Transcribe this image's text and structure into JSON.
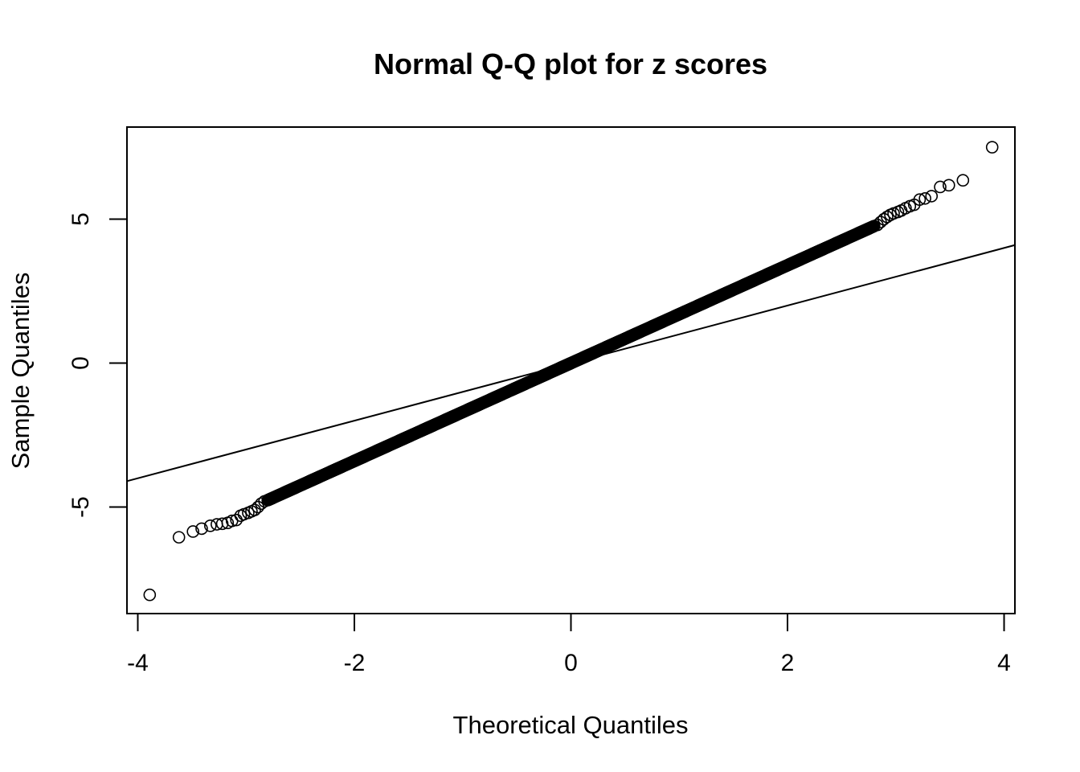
{
  "chart_data": {
    "type": "scatter",
    "title": "Normal Q-Q plot for z scores",
    "xlabel": "Theoretical Quantiles",
    "ylabel": "Sample Quantiles",
    "xlim": [
      -4.1,
      4.1
    ],
    "ylim": [
      -8.7,
      8.2
    ],
    "x_ticks": [
      {
        "value": -4,
        "label": "-4"
      },
      {
        "value": -2,
        "label": "-2"
      },
      {
        "value": 0,
        "label": "0"
      },
      {
        "value": 2,
        "label": "2"
      },
      {
        "value": 4,
        "label": "4"
      }
    ],
    "y_ticks": [
      {
        "value": -5,
        "label": "-5"
      },
      {
        "value": 0,
        "label": "0"
      },
      {
        "value": 5,
        "label": "5"
      }
    ],
    "grid": false,
    "reference_line": {
      "intercept": 0,
      "slope": 1
    },
    "point_style": "open circle",
    "points": [
      [
        -3.89,
        -8.05
      ],
      [
        -3.62,
        -6.05
      ],
      [
        -3.49,
        -5.85
      ],
      [
        -3.41,
        -5.75
      ],
      [
        -3.33,
        -5.65
      ],
      [
        -3.27,
        -5.6
      ],
      [
        -3.22,
        -5.58
      ],
      [
        -3.17,
        -5.55
      ],
      [
        -3.13,
        -5.48
      ],
      [
        -3.09,
        -5.45
      ],
      [
        -3.05,
        -5.3
      ],
      [
        -3.02,
        -5.25
      ],
      [
        -2.98,
        -5.2
      ],
      [
        -2.95,
        -5.15
      ],
      [
        -2.92,
        -5.1
      ],
      [
        -2.89,
        -5.0
      ],
      [
        -2.86,
        -4.88
      ],
      [
        -2.83,
        -4.8
      ],
      [
        2.83,
        4.8
      ],
      [
        2.86,
        4.9
      ],
      [
        2.89,
        5.0
      ],
      [
        2.92,
        5.08
      ],
      [
        2.95,
        5.15
      ],
      [
        2.98,
        5.2
      ],
      [
        3.02,
        5.25
      ],
      [
        3.05,
        5.3
      ],
      [
        3.09,
        5.38
      ],
      [
        3.13,
        5.45
      ],
      [
        3.17,
        5.5
      ],
      [
        3.22,
        5.68
      ],
      [
        3.27,
        5.72
      ],
      [
        3.33,
        5.8
      ],
      [
        3.41,
        6.12
      ],
      [
        3.49,
        6.18
      ],
      [
        3.62,
        6.35
      ],
      [
        3.89,
        7.5
      ]
    ],
    "body_band": {
      "x_range": [
        -2.8,
        2.8
      ],
      "slope": 1.7,
      "intercept": 0.0,
      "note_points_dense": true
    }
  }
}
